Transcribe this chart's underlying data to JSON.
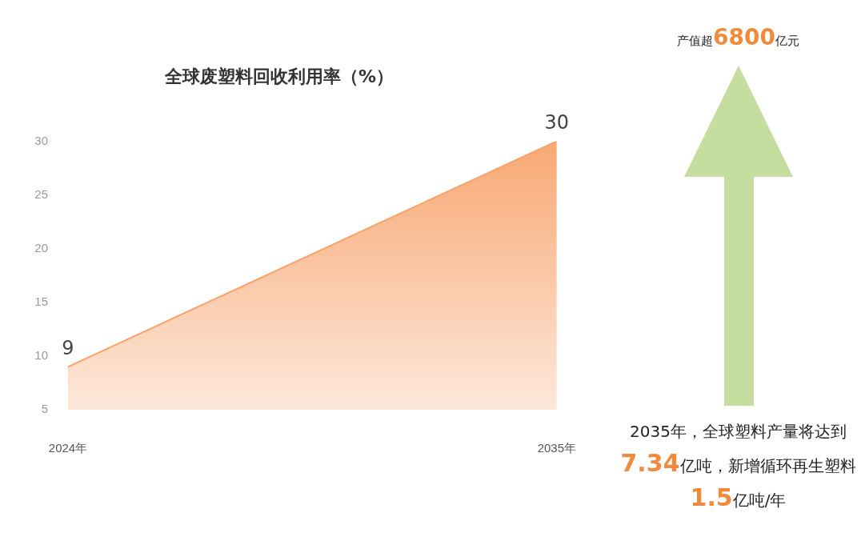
{
  "chart_data": {
    "type": "area",
    "title": "全球废塑料回收利用率（%）",
    "categories": [
      "2024年",
      "2035年"
    ],
    "series": [
      {
        "color": "#f7a36c",
        "values": [
          9,
          30
        ]
      }
    ],
    "ylim": [
      5,
      30
    ],
    "yticks": [
      5,
      10,
      15,
      20,
      25,
      30
    ],
    "data_labels": true,
    "grid": false,
    "legend": false,
    "annotations": [
      "产值超6800亿元",
      "2035年，全球塑料产量将达到7.34亿吨，新增循环再生塑料1.5亿吨/年"
    ]
  }
}
